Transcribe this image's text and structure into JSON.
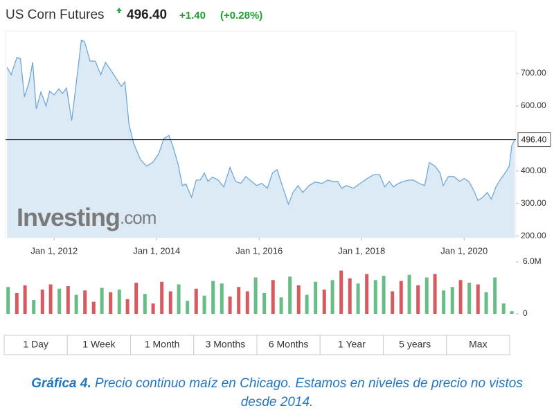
{
  "header": {
    "title": "US Corn Futures",
    "change": "+1.40",
    "change_pct": "(+0.28%)"
  },
  "chart_data": [
    {
      "type": "area",
      "color": "#6fa8d8",
      "fill": "#dceaf6",
      "price": {
        "value": 496.4,
        "label": "496.40"
      },
      "watermark": [
        "Investing",
        ".com"
      ],
      "xlim": [
        2011.05,
        2021.01
      ],
      "ylim": [
        195,
        830
      ],
      "xticks": [
        {
          "value": 2012,
          "label": "Jan 1, 2012"
        },
        {
          "value": 2014,
          "label": "Jan 1, 2014"
        },
        {
          "value": 2016,
          "label": "Jan 1, 2016"
        },
        {
          "value": 2018,
          "label": "Jan 1, 2018"
        },
        {
          "value": 2020,
          "label": "Jan 1, 2020"
        }
      ],
      "yticks": [
        {
          "value": 200,
          "label": "200.00"
        },
        {
          "value": 300,
          "label": "300.00"
        },
        {
          "value": 400,
          "label": "400.00"
        },
        {
          "value": 600,
          "label": "600.00"
        },
        {
          "value": 700,
          "label": "700.00"
        }
      ],
      "x": [
        2011.08,
        2011.16,
        2011.27,
        2011.34,
        2011.42,
        2011.51,
        2011.58,
        2011.65,
        2011.74,
        2011.84,
        2011.91,
        2012.0,
        2012.09,
        2012.16,
        2012.24,
        2012.34,
        2012.43,
        2012.53,
        2012.59,
        2012.7,
        2012.8,
        2012.91,
        2013.0,
        2013.11,
        2013.2,
        2013.31,
        2013.38,
        2013.46,
        2013.55,
        2013.68,
        2013.8,
        2013.92,
        2014.04,
        2014.14,
        2014.24,
        2014.32,
        2014.42,
        2014.5,
        2014.57,
        2014.68,
        2014.77,
        2014.85,
        2014.93,
        2015.0,
        2015.09,
        2015.2,
        2015.31,
        2015.43,
        2015.54,
        2015.64,
        2015.74,
        2015.85,
        2015.95,
        2016.05,
        2016.16,
        2016.26,
        2016.35,
        2016.45,
        2016.57,
        2016.66,
        2016.76,
        2016.85,
        2016.97,
        2017.09,
        2017.23,
        2017.34,
        2017.43,
        2017.53,
        2017.61,
        2017.7,
        2017.84,
        2017.97,
        2018.11,
        2018.24,
        2018.35,
        2018.45,
        2018.54,
        2018.62,
        2018.72,
        2018.82,
        2018.92,
        2019.01,
        2019.12,
        2019.23,
        2019.32,
        2019.43,
        2019.53,
        2019.59,
        2019.69,
        2019.8,
        2019.91,
        2020.0,
        2020.09,
        2020.19,
        2020.27,
        2020.36,
        2020.45,
        2020.53,
        2020.62,
        2020.7,
        2020.8,
        2020.88,
        2020.93,
        2020.99
      ],
      "values": [
        719,
        696,
        749,
        745,
        628,
        674,
        734,
        591,
        643,
        600,
        645,
        634,
        653,
        638,
        655,
        555,
        670,
        802,
        798,
        738,
        738,
        696,
        734,
        709,
        687,
        660,
        674,
        543,
        485,
        436,
        415,
        426,
        453,
        500,
        509,
        474,
        419,
        355,
        360,
        319,
        372,
        372,
        394,
        368,
        381,
        372,
        351,
        411,
        368,
        362,
        383,
        368,
        355,
        362,
        347,
        394,
        404,
        355,
        298,
        334,
        355,
        334,
        355,
        366,
        362,
        372,
        368,
        368,
        347,
        355,
        347,
        362,
        377,
        389,
        389,
        351,
        368,
        351,
        362,
        368,
        372,
        372,
        362,
        355,
        426,
        415,
        394,
        355,
        383,
        383,
        368,
        377,
        368,
        340,
        309,
        319,
        334,
        313,
        351,
        372,
        394,
        415,
        479,
        496.4
      ]
    },
    {
      "type": "bar",
      "xlim": [
        2011.05,
        2021.01
      ],
      "ylim": [
        0,
        6000000
      ],
      "yticks": [
        0,
        {
          "value": 6000000,
          "label": "6.0M"
        }
      ],
      "x": [
        2011.1,
        2011.27,
        2011.43,
        2011.6,
        2011.77,
        2011.93,
        2012.1,
        2012.27,
        2012.43,
        2012.6,
        2012.77,
        2012.93,
        2013.1,
        2013.27,
        2013.43,
        2013.6,
        2013.77,
        2013.93,
        2014.1,
        2014.27,
        2014.43,
        2014.6,
        2014.77,
        2014.93,
        2015.1,
        2015.27,
        2015.43,
        2015.6,
        2015.77,
        2015.93,
        2016.1,
        2016.27,
        2016.43,
        2016.6,
        2016.77,
        2016.93,
        2017.1,
        2017.27,
        2017.43,
        2017.6,
        2017.77,
        2017.93,
        2018.1,
        2018.27,
        2018.43,
        2018.6,
        2018.77,
        2018.93,
        2019.1,
        2019.27,
        2019.43,
        2019.6,
        2019.77,
        2019.93,
        2020.1,
        2020.27,
        2020.43,
        2020.6,
        2020.77,
        2020.93
      ],
      "values": [
        3100000,
        2400000,
        3300000,
        1600000,
        2800000,
        3400000,
        2900000,
        3200000,
        2200000,
        2700000,
        1400000,
        3000000,
        2500000,
        2800000,
        1700000,
        3600000,
        2300000,
        1200000,
        3700000,
        2600000,
        3400000,
        1500000,
        2900000,
        2100000,
        3800000,
        3500000,
        2000000,
        3100000,
        2600000,
        4200000,
        2400000,
        3900000,
        1900000,
        4300000,
        3300000,
        2200000,
        3700000,
        2800000,
        3900000,
        5000000,
        4100000,
        3500000,
        4600000,
        3900000,
        4400000,
        2600000,
        3800000,
        4500000,
        3300000,
        4200000,
        4600000,
        2700000,
        3100000,
        3900000,
        3600000,
        3400000,
        2500000,
        4200000,
        1200000,
        300000
      ],
      "colors": [
        "#67bd86",
        "#d65a5f",
        "#d65a5f",
        "#67bd86",
        "#d65a5f",
        "#d65a5f",
        "#67bd86",
        "#d65a5f",
        "#67bd86",
        "#d65a5f",
        "#d65a5f",
        "#67bd86",
        "#d65a5f",
        "#67bd86",
        "#d65a5f",
        "#d65a5f",
        "#67bd86",
        "#d65a5f",
        "#d65a5f",
        "#d65a5f",
        "#67bd86",
        "#67bd86",
        "#d65a5f",
        "#67bd86",
        "#67bd86",
        "#67bd86",
        "#d65a5f",
        "#d65a5f",
        "#d65a5f",
        "#67bd86",
        "#67bd86",
        "#d65a5f",
        "#67bd86",
        "#67bd86",
        "#d65a5f",
        "#67bd86",
        "#67bd86",
        "#d65a5f",
        "#67bd86",
        "#d65a5f",
        "#d65a5f",
        "#67bd86",
        "#d65a5f",
        "#67bd86",
        "#67bd86",
        "#d65a5f",
        "#d65a5f",
        "#67bd86",
        "#d65a5f",
        "#67bd86",
        "#d65a5f",
        "#67bd86",
        "#67bd86",
        "#d65a5f",
        "#67bd86",
        "#d65a5f",
        "#67bd86",
        "#67bd86",
        "#67bd86",
        "#67bd86"
      ]
    }
  ],
  "ranges": [
    "1 Day",
    "1 Week",
    "1 Month",
    "3 Months",
    "6 Months",
    "1 Year",
    "5 years",
    "Max"
  ],
  "caption": {
    "label": "Gráfica 4.",
    "text": "Precio continuo maíz en Chicago. Estamos en niveles de precio no vistos desde 2014."
  }
}
